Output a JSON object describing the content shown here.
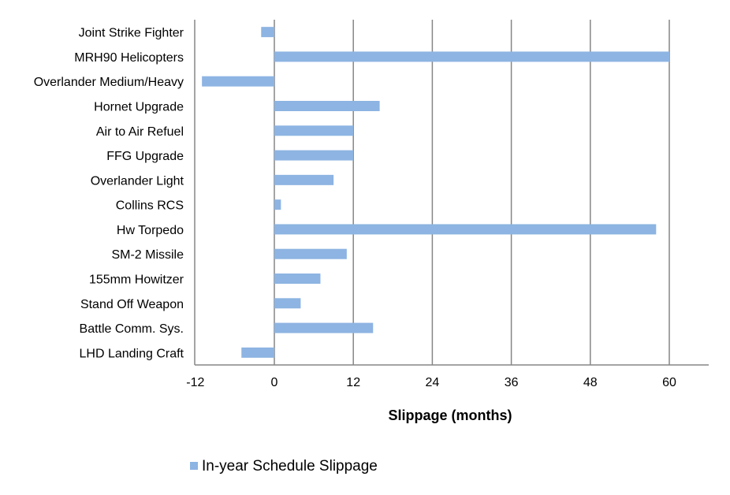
{
  "chart_data": {
    "type": "bar",
    "orientation": "horizontal",
    "categories": [
      "Joint Strike Fighter",
      "MRH90 Helicopters",
      "Overlander Medium/Heavy",
      "Hornet Upgrade",
      "Air to Air Refuel",
      "FFG Upgrade",
      "Overlander Light",
      "Collins RCS",
      "Hw Torpedo",
      "SM-2 Missile",
      "155mm Howitzer",
      "Stand Off Weapon",
      "Battle Comm. Sys.",
      "LHD Landing Craft"
    ],
    "series": [
      {
        "name": "In-year Schedule Slippage",
        "values": [
          -2,
          60,
          -11,
          16,
          12,
          12,
          9,
          1,
          58,
          11,
          7,
          4,
          15,
          -5
        ]
      }
    ],
    "xlabel": "Slippage (months)",
    "ylabel": "",
    "title": "",
    "xlim": [
      -12,
      66
    ],
    "xticks": [
      -12,
      0,
      12,
      24,
      36,
      48,
      60
    ],
    "xtick_labels": [
      "-12",
      "0",
      "12",
      "24",
      "36",
      "48",
      "60"
    ],
    "grid": "vertical",
    "legend_position": "bottom-left",
    "colors": {
      "bar": "#8db4e2",
      "grid": "#868686",
      "axis": "#868686"
    }
  }
}
